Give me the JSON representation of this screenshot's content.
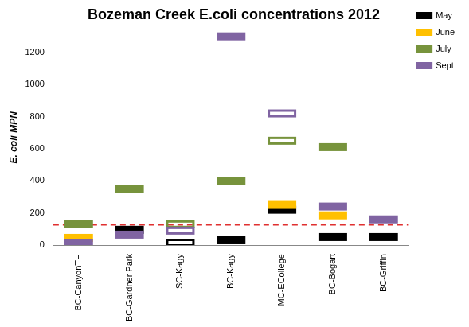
{
  "chart_data": {
    "type": "floating_marker",
    "title": "Bozeman Creek E.coli concentrations 2012",
    "y_label": "E. coli MPN",
    "categories": [
      "BC-CanyonTH",
      "BC-Gardner Park",
      "SC-Kagy",
      "BC-Kagy",
      "MC-ECollege",
      "BC-Bogart",
      "BC-Griffin"
    ],
    "series": [
      {
        "name": "May",
        "color": "#000000",
        "marker": "filled",
        "values": [
          null,
          95,
          null,
          30,
          220,
          50,
          50
        ]
      },
      {
        "name": "June",
        "color": "#ffc000",
        "marker": "filled",
        "values": [
          45,
          null,
          null,
          null,
          250,
          185,
          null
        ]
      },
      {
        "name": "July",
        "color": "#77933c",
        "marker": "filled",
        "values": [
          130,
          350,
          null,
          400,
          null,
          610,
          null
        ]
      },
      {
        "name": "Sept",
        "color": "#8064a2",
        "marker": "filled",
        "values": [
          15,
          65,
          null,
          1300,
          null,
          240,
          160
        ]
      },
      {
        "name": "May",
        "color": "#000000",
        "marker": "hollow",
        "values": [
          null,
          null,
          15,
          null,
          null,
          null,
          null
        ]
      },
      {
        "name": "July",
        "color": "#77933c",
        "marker": "hollow",
        "values": [
          null,
          null,
          130,
          null,
          650,
          null,
          null
        ]
      },
      {
        "name": "Sept",
        "color": "#8064a2",
        "marker": "hollow",
        "values": [
          null,
          null,
          90,
          null,
          820,
          null,
          null
        ]
      }
    ],
    "reference_lines": [
      {
        "value": 126,
        "color": "#e03030",
        "line_style": "dashed"
      }
    ],
    "ylim": [
      0,
      1340
    ],
    "yticks": [
      0,
      200,
      400,
      600,
      800,
      1000,
      1200
    ],
    "grid": false,
    "legend": "top-right"
  }
}
